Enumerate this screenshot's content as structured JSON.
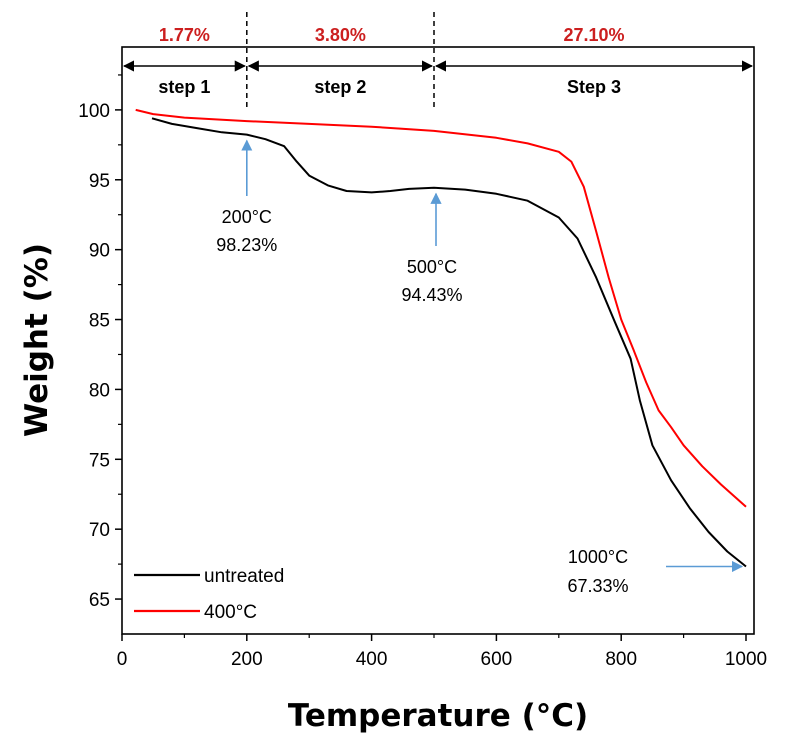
{
  "chart_data": {
    "type": "line",
    "xlabel": "Temperature (°C)",
    "ylabel": "Weight (%)",
    "xlim": [
      0,
      1000
    ],
    "ylim": [
      62.5,
      104.5
    ],
    "xticks": [
      0,
      200,
      400,
      600,
      800,
      1000
    ],
    "yticks": [
      65,
      70,
      75,
      80,
      85,
      90,
      95,
      100
    ],
    "grid": false,
    "legend_position": "bottom-left",
    "series": [
      {
        "name": "untreated",
        "color": "#000000",
        "points": [
          [
            48,
            99.4
          ],
          [
            80,
            99.0
          ],
          [
            120,
            98.7
          ],
          [
            160,
            98.4
          ],
          [
            200,
            98.23
          ],
          [
            230,
            97.9
          ],
          [
            260,
            97.4
          ],
          [
            280,
            96.3
          ],
          [
            300,
            95.3
          ],
          [
            330,
            94.6
          ],
          [
            360,
            94.2
          ],
          [
            400,
            94.1
          ],
          [
            430,
            94.2
          ],
          [
            460,
            94.35
          ],
          [
            500,
            94.43
          ],
          [
            550,
            94.3
          ],
          [
            600,
            94.0
          ],
          [
            650,
            93.5
          ],
          [
            700,
            92.3
          ],
          [
            730,
            90.8
          ],
          [
            760,
            88.0
          ],
          [
            790,
            84.8
          ],
          [
            815,
            82.2
          ],
          [
            830,
            79.2
          ],
          [
            850,
            76.0
          ],
          [
            880,
            73.5
          ],
          [
            910,
            71.5
          ],
          [
            940,
            69.8
          ],
          [
            970,
            68.4
          ],
          [
            1000,
            67.33
          ]
        ]
      },
      {
        "name": "400°C",
        "color": "#ff0000",
        "points": [
          [
            22,
            100.0
          ],
          [
            50,
            99.7
          ],
          [
            100,
            99.45
          ],
          [
            200,
            99.2
          ],
          [
            300,
            99.0
          ],
          [
            400,
            98.8
          ],
          [
            500,
            98.5
          ],
          [
            600,
            98.0
          ],
          [
            650,
            97.6
          ],
          [
            700,
            97.0
          ],
          [
            720,
            96.3
          ],
          [
            740,
            94.5
          ],
          [
            760,
            91.3
          ],
          [
            780,
            88.0
          ],
          [
            800,
            85.0
          ],
          [
            820,
            82.8
          ],
          [
            840,
            80.5
          ],
          [
            860,
            78.5
          ],
          [
            880,
            77.3
          ],
          [
            900,
            76.0
          ],
          [
            930,
            74.5
          ],
          [
            960,
            73.2
          ],
          [
            1000,
            71.6
          ]
        ]
      }
    ],
    "steps": [
      {
        "label": "step 1",
        "percent": "1.77%",
        "x_start": 0,
        "x_end": 200
      },
      {
        "label": "step 2",
        "percent": "3.80%",
        "x_start": 200,
        "x_end": 500
      },
      {
        "label": "Step 3",
        "percent": "27.10%",
        "x_start": 500,
        "x_end": 1000
      }
    ],
    "annotations": [
      {
        "temp": "200°C",
        "weight": "98.23%",
        "x": 200,
        "y": 98.23
      },
      {
        "temp": "500°C",
        "weight": "94.43%",
        "x": 500,
        "y": 94.43
      },
      {
        "temp": "1000°C",
        "weight": "67.33%",
        "x": 1000,
        "y": 67.33
      }
    ],
    "colors": {
      "arrow": "#5b9bd5",
      "percent_text": "#cc1f1f",
      "axis": "#000000"
    }
  }
}
